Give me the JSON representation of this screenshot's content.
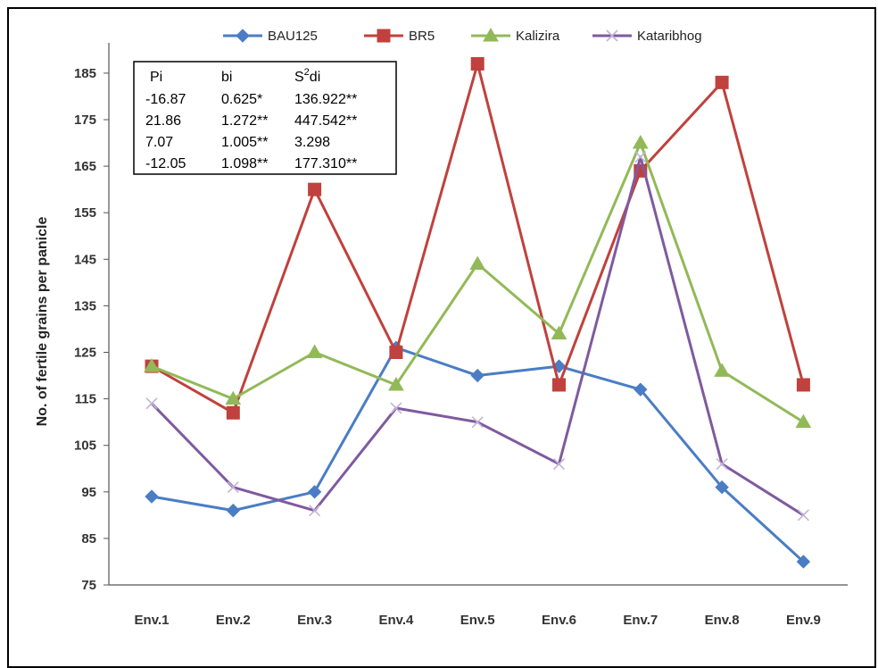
{
  "chart_data": {
    "type": "line",
    "title": "",
    "xlabel": "",
    "ylabel": "No. of fertile grains per panicle",
    "ylim": [
      75,
      190
    ],
    "yticks": [
      75,
      85,
      95,
      105,
      115,
      125,
      135,
      145,
      155,
      165,
      175,
      185
    ],
    "grid": false,
    "legend_position": "top",
    "categories": [
      "Env.1",
      "Env.2",
      "Env.3",
      "Env.4",
      "Env.5",
      "Env.6",
      "Env.7",
      "Env.8",
      "Env.9"
    ],
    "series": [
      {
        "name": "BAU125",
        "color": "#4a7dc4",
        "marker": "diamond",
        "values": [
          94,
          91,
          95,
          126,
          120,
          122,
          117,
          96,
          80
        ]
      },
      {
        "name": "BR5",
        "color": "#c0413d",
        "marker": "square",
        "values": [
          122,
          112,
          160,
          125,
          187,
          118,
          164,
          183,
          118
        ]
      },
      {
        "name": "Kalizira",
        "color": "#92b957",
        "marker": "triangle",
        "values": [
          122,
          115,
          125,
          118,
          144,
          129,
          170,
          121,
          110
        ]
      },
      {
        "name": "Kataribhog",
        "color": "#7f5a9e",
        "marker": "x",
        "values": [
          114,
          96,
          91,
          113,
          110,
          101,
          167,
          101,
          90
        ]
      }
    ],
    "stats_table": {
      "headers": [
        "Pi",
        "bi",
        "S2di"
      ],
      "rows": [
        [
          "-16.87",
          "0.625*",
          "136.922**"
        ],
        [
          "21.86",
          "1.272**",
          "447.542**"
        ],
        [
          "7.07",
          "1.005**",
          "3.298"
        ],
        [
          "-12.05",
          "1.098**",
          "177.310**"
        ]
      ]
    }
  }
}
